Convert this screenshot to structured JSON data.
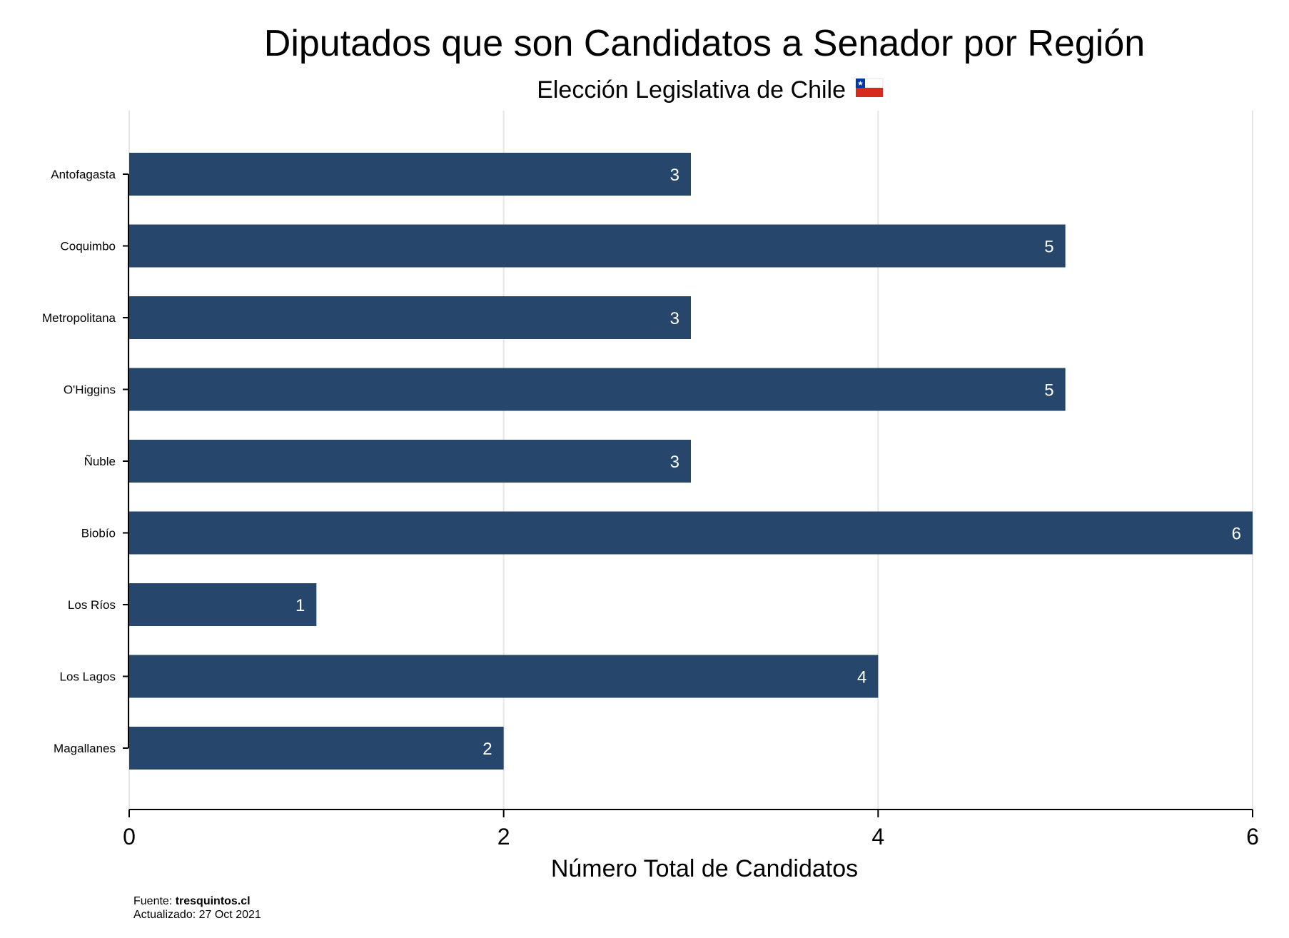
{
  "chart_data": {
    "type": "bar",
    "orientation": "horizontal",
    "title": "Diputados que son Candidatos a Senador por Región",
    "subtitle": "Elección Legislativa de Chile",
    "subtitle_icon": "chile-flag-icon",
    "categories": [
      "Antofagasta",
      "Coquimbo",
      "Metropolitana",
      "O'Higgins",
      "Ñuble",
      "Biobío",
      "Los Ríos",
      "Los Lagos",
      "Magallanes"
    ],
    "values": [
      3,
      5,
      3,
      5,
      3,
      6,
      1,
      4,
      2
    ],
    "xlabel": "Número Total de Candidatos",
    "ylabel": "",
    "xlim": [
      0,
      6
    ],
    "xticks": [
      0,
      2,
      4,
      6
    ],
    "grid": true,
    "bar_color": "#26476B",
    "data_labels": true
  },
  "footer": {
    "source_prefix": "Fuente: ",
    "source": "tresquintos.cl",
    "updated": "Actualizado: 27 Oct 2021"
  }
}
